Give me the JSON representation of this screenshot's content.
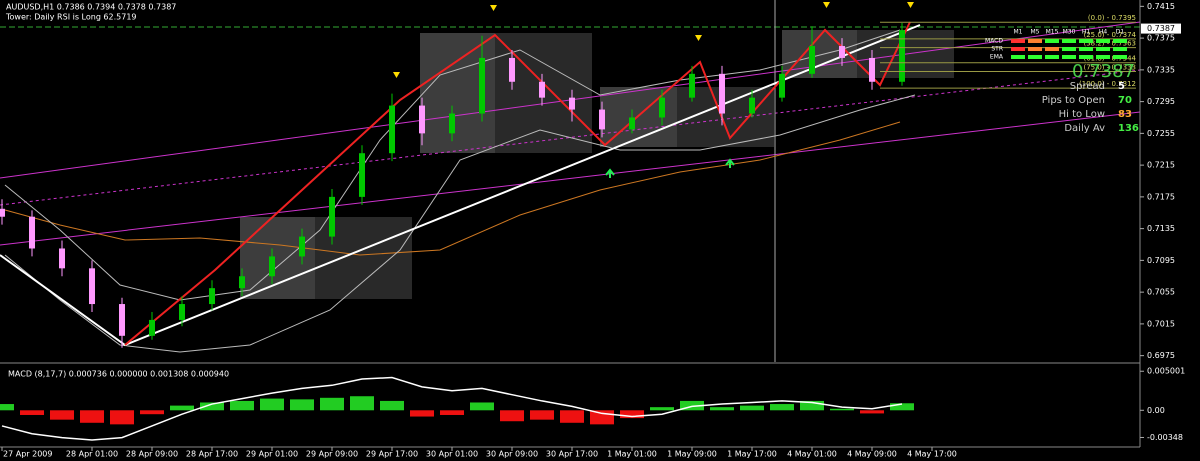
{
  "chart_data": [
    {
      "type": "candlestick",
      "title": "AUDUSD,H1  0.7386 0.7394 0.7378 0.7387",
      "subtitle": "Tower: Daily RSI is Long 62.5719",
      "categories": [
        "27 Apr 2009",
        null,
        null,
        "28 Apr 01:00",
        null,
        "28 Apr 09:00",
        null,
        "28 Apr 17:00",
        null,
        "29 Apr 01:00",
        null,
        "29 Apr 09:00",
        null,
        "29 Apr 17:00",
        null,
        "30 Apr 01:00",
        null,
        "30 Apr 09:00",
        null,
        "30 Apr 17:00",
        null,
        "1 May 01:00",
        null,
        "1 May 09:00",
        null,
        "1 May 17:00",
        null,
        "4 May 01:00",
        null,
        "4 May 09:00",
        null,
        "4 May 17:00"
      ],
      "open": [
        0.716,
        0.715,
        0.711,
        0.7085,
        0.704,
        0.7,
        0.702,
        0.704,
        0.706,
        0.7075,
        0.71,
        0.7125,
        0.7175,
        0.723,
        0.729,
        0.7255,
        0.728,
        0.735,
        0.732,
        0.73,
        0.7285,
        0.726,
        0.7275,
        0.73,
        0.733,
        0.728,
        0.73,
        0.733,
        0.7365,
        0.735,
        0.732,
        null
      ],
      "high": [
        0.7172,
        0.7158,
        0.712,
        0.7095,
        0.7048,
        0.703,
        0.705,
        0.707,
        0.7085,
        0.711,
        0.7135,
        0.7185,
        0.724,
        0.7305,
        0.73,
        0.729,
        0.7378,
        0.736,
        0.733,
        0.731,
        0.7295,
        0.7285,
        0.731,
        0.734,
        0.734,
        0.731,
        0.734,
        0.739,
        0.7375,
        0.736,
        0.7394,
        null
      ],
      "low": [
        0.714,
        0.71,
        0.7075,
        0.703,
        0.6985,
        0.6995,
        0.7012,
        0.7032,
        0.705,
        0.7065,
        0.709,
        0.7115,
        0.7165,
        0.722,
        0.724,
        0.7245,
        0.727,
        0.731,
        0.729,
        0.727,
        0.725,
        0.7255,
        0.7265,
        0.7295,
        0.7265,
        0.7275,
        0.7295,
        0.7325,
        0.734,
        0.731,
        0.7315,
        null
      ],
      "close": [
        0.715,
        0.711,
        0.7085,
        0.704,
        0.7,
        0.702,
        0.704,
        0.706,
        0.7075,
        0.71,
        0.7125,
        0.7175,
        0.723,
        0.729,
        0.7255,
        0.728,
        0.735,
        0.732,
        0.73,
        0.7285,
        0.726,
        0.7275,
        0.73,
        0.733,
        0.728,
        0.73,
        0.733,
        0.7365,
        0.735,
        0.732,
        0.7385,
        null
      ],
      "up_color": "#00c800",
      "down_color": "#ff99ff",
      "ylim": [
        0.6967,
        0.7423
      ],
      "yticks": [
        0.7415,
        0.7375,
        0.7335,
        0.7295,
        0.7255,
        0.7215,
        0.7175,
        0.7135,
        0.7095,
        0.7055,
        0.7015,
        0.6975
      ],
      "current_price": 0.7387,
      "fib_levels": [
        {
          "value": 0.7395,
          "label": "(0.0) - 0.7395"
        },
        {
          "value": 0.7374,
          "label": "(25.0) - 0.7374"
        },
        {
          "value": 0.7363,
          "label": "(38.2) - 0.7363"
        },
        {
          "value": 0.7344,
          "label": "(61.8) - 0.7344"
        },
        {
          "value": 0.7333,
          "label": "(75.0) - 0.7333"
        },
        {
          "value": 0.7312,
          "label": "(100.0) - 0.7312"
        }
      ]
    },
    {
      "type": "macd",
      "title": "MACD (8,17,7) 0.000736 0.000000 0.001308 0.000940",
      "values": [
        0.0008,
        -0.0006,
        -0.0012,
        -0.0016,
        -0.0018,
        -0.0005,
        0.0006,
        0.001,
        0.0012,
        0.0015,
        0.0014,
        0.0016,
        0.0018,
        0.0012,
        -0.0008,
        -0.0006,
        0.001,
        -0.0014,
        -0.0012,
        -0.0016,
        -0.0018,
        -0.001,
        0.0004,
        0.0012,
        0.0004,
        0.0006,
        0.0008,
        0.0012,
        0.0002,
        -0.0004,
        0.0009,
        null
      ],
      "line_values": [
        -0.002,
        -0.003,
        -0.0035,
        -0.0038,
        -0.0035,
        -0.002,
        -0.0005,
        0.0008,
        0.0015,
        0.0022,
        0.0028,
        0.0032,
        0.004,
        0.0042,
        0.003,
        0.0025,
        0.0028,
        0.002,
        0.0012,
        0.0005,
        -0.0004,
        -0.0008,
        -0.0005,
        0.0005,
        0.0008,
        0.001,
        0.0012,
        0.001,
        0.0004,
        0.0002,
        0.0008,
        null
      ],
      "up_color": "#22cc22",
      "down_color": "#ee1111",
      "line_color": "#ffffff",
      "ylim": [
        -0.0047,
        0.0058
      ],
      "yticks": [
        0.005001,
        {
          "value": 0,
          "label": "0.00"
        },
        -0.00348
      ]
    }
  ],
  "info_panel": {
    "timeframes": [
      "M1",
      "M5",
      "M15",
      "M30",
      "H1",
      "H4",
      "D1"
    ],
    "rows": [
      "MACD",
      "STR",
      "EMA"
    ],
    "signals": [
      [
        "#ff3030",
        "#ff8030",
        "#30ff30",
        "#30ff30",
        "#30ff30",
        "#30ff30",
        "#30ff30"
      ],
      [
        "#ff3030",
        "#ff8030",
        "#ff8030",
        "#30ff30",
        "#30ff30",
        "#30ff30",
        "#30ff30"
      ],
      [
        "#30ff30",
        "#30ff30",
        "#30ff30",
        "#30ff30",
        "#30ff30",
        "#30ff30",
        "#30ff30"
      ]
    ],
    "spread_label": "Spread",
    "spread": 5,
    "pips_to_open_label": "Pips to Open",
    "pips_to_open": 70,
    "hi_to_low_label": "Hi to Low",
    "hi_to_low": 83,
    "daily_av_label": "Daily Av",
    "daily_av": 136
  }
}
